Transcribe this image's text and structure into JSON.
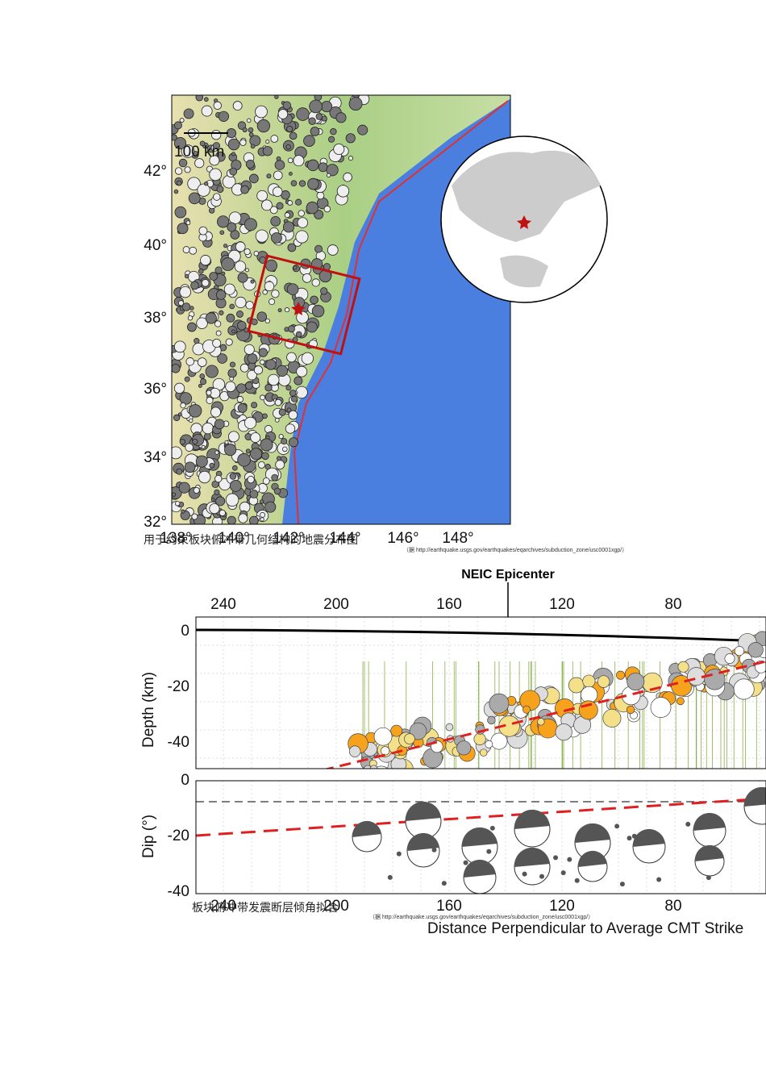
{
  "figure1": {
    "scale_label": "100 km",
    "lat_labels": [
      "42°",
      "40°",
      "38°",
      "36°",
      "34°",
      "32°"
    ],
    "lon_labels": [
      "138°",
      "140°",
      "142°",
      "144°",
      "146°",
      "148°"
    ],
    "caption": "用于约束板块俯冲带几何结构的地震分布图",
    "source": "（据 http://earthquake.usgs.gov/earthquakes/eqarchives/subduction_zone/usc0001xgp/）"
  },
  "figure2": {
    "annotation": "NEIC Epicenter",
    "top_x_labels": [
      "240",
      "200",
      "160",
      "120",
      "80"
    ],
    "depth_axis_label": "Depth (km)",
    "depth_ticks": [
      "0",
      "-20",
      "-40"
    ],
    "dip_axis_label": "Dip (°)",
    "dip_ticks": [
      "0",
      "-20",
      "-40"
    ],
    "bottom_x_labels": [
      "240",
      "200",
      "160",
      "120",
      "80"
    ],
    "x_axis_label": "Distance Perpendicular to Average CMT Strike",
    "caption": "板块俯冲带发震断层倾角拟合",
    "source": "（据 http://earthquake.usgs.gov/earthquakes/eqarchives/subduction_zone/usc0001xgp/）"
  }
}
